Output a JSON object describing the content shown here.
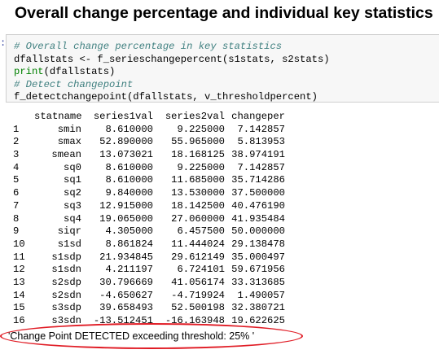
{
  "page_title": "Overall change percentage and individual key statistics",
  "prompt_marker": ":",
  "code_cell": {
    "lines": [
      [
        {
          "cls": "tok-comment",
          "text": "# Overall change percentage in key statistics"
        }
      ],
      [
        {
          "cls": "tok-plain",
          "text": "dfallstats <- f_serieschangepercent(s1stats, s2stats)"
        }
      ],
      [
        {
          "cls": "tok-builtin",
          "text": "print"
        },
        {
          "cls": "tok-plain",
          "text": "(dfallstats)"
        }
      ],
      [
        {
          "cls": "tok-comment",
          "text": "# Detect changepoint"
        }
      ],
      [
        {
          "cls": "tok-plain",
          "text": "f_detectchangepoint(dfallstats, v_thresholdpercent)"
        }
      ]
    ]
  },
  "output_table": {
    "columns": [
      "",
      "statname",
      "series1val",
      "series2val",
      "changeper"
    ],
    "rows": [
      [
        "1",
        "smin",
        "8.610000",
        "9.225000",
        "7.142857"
      ],
      [
        "2",
        "smax",
        "52.890000",
        "55.965000",
        "5.813953"
      ],
      [
        "3",
        "smean",
        "13.073021",
        "18.168125",
        "38.974191"
      ],
      [
        "4",
        "sq0",
        "8.610000",
        "9.225000",
        "7.142857"
      ],
      [
        "5",
        "sq1",
        "8.610000",
        "11.685000",
        "35.714286"
      ],
      [
        "6",
        "sq2",
        "9.840000",
        "13.530000",
        "37.500000"
      ],
      [
        "7",
        "sq3",
        "12.915000",
        "18.142500",
        "40.476190"
      ],
      [
        "8",
        "sq4",
        "19.065000",
        "27.060000",
        "41.935484"
      ],
      [
        "9",
        "siqr",
        "4.305000",
        "6.457500",
        "50.000000"
      ],
      [
        "10",
        "s1sd",
        "8.861824",
        "11.444024",
        "29.138478"
      ],
      [
        "11",
        "s1sdp",
        "21.934845",
        "29.612149",
        "35.000497"
      ],
      [
        "12",
        "s1sdn",
        "4.211197",
        "6.724101",
        "59.671956"
      ],
      [
        "13",
        "s2sdp",
        "30.796669",
        "41.056174",
        "33.313685"
      ],
      [
        "14",
        "s2sdn",
        "-4.650627",
        "-4.719924",
        "1.490057"
      ],
      [
        "15",
        "s3sdp",
        "39.658493",
        "52.500198",
        "32.380721"
      ],
      [
        "16",
        "s3sdn",
        "-13.512451",
        "-16.163948",
        "19.622625"
      ]
    ]
  },
  "result_text": "'Change Point DETECTED exceeding threshold: 25% '",
  "colors": {
    "comment": "#408080",
    "builtin": "#008000",
    "highlight": "#e01b24",
    "cell_background": "#f7f7f7"
  }
}
